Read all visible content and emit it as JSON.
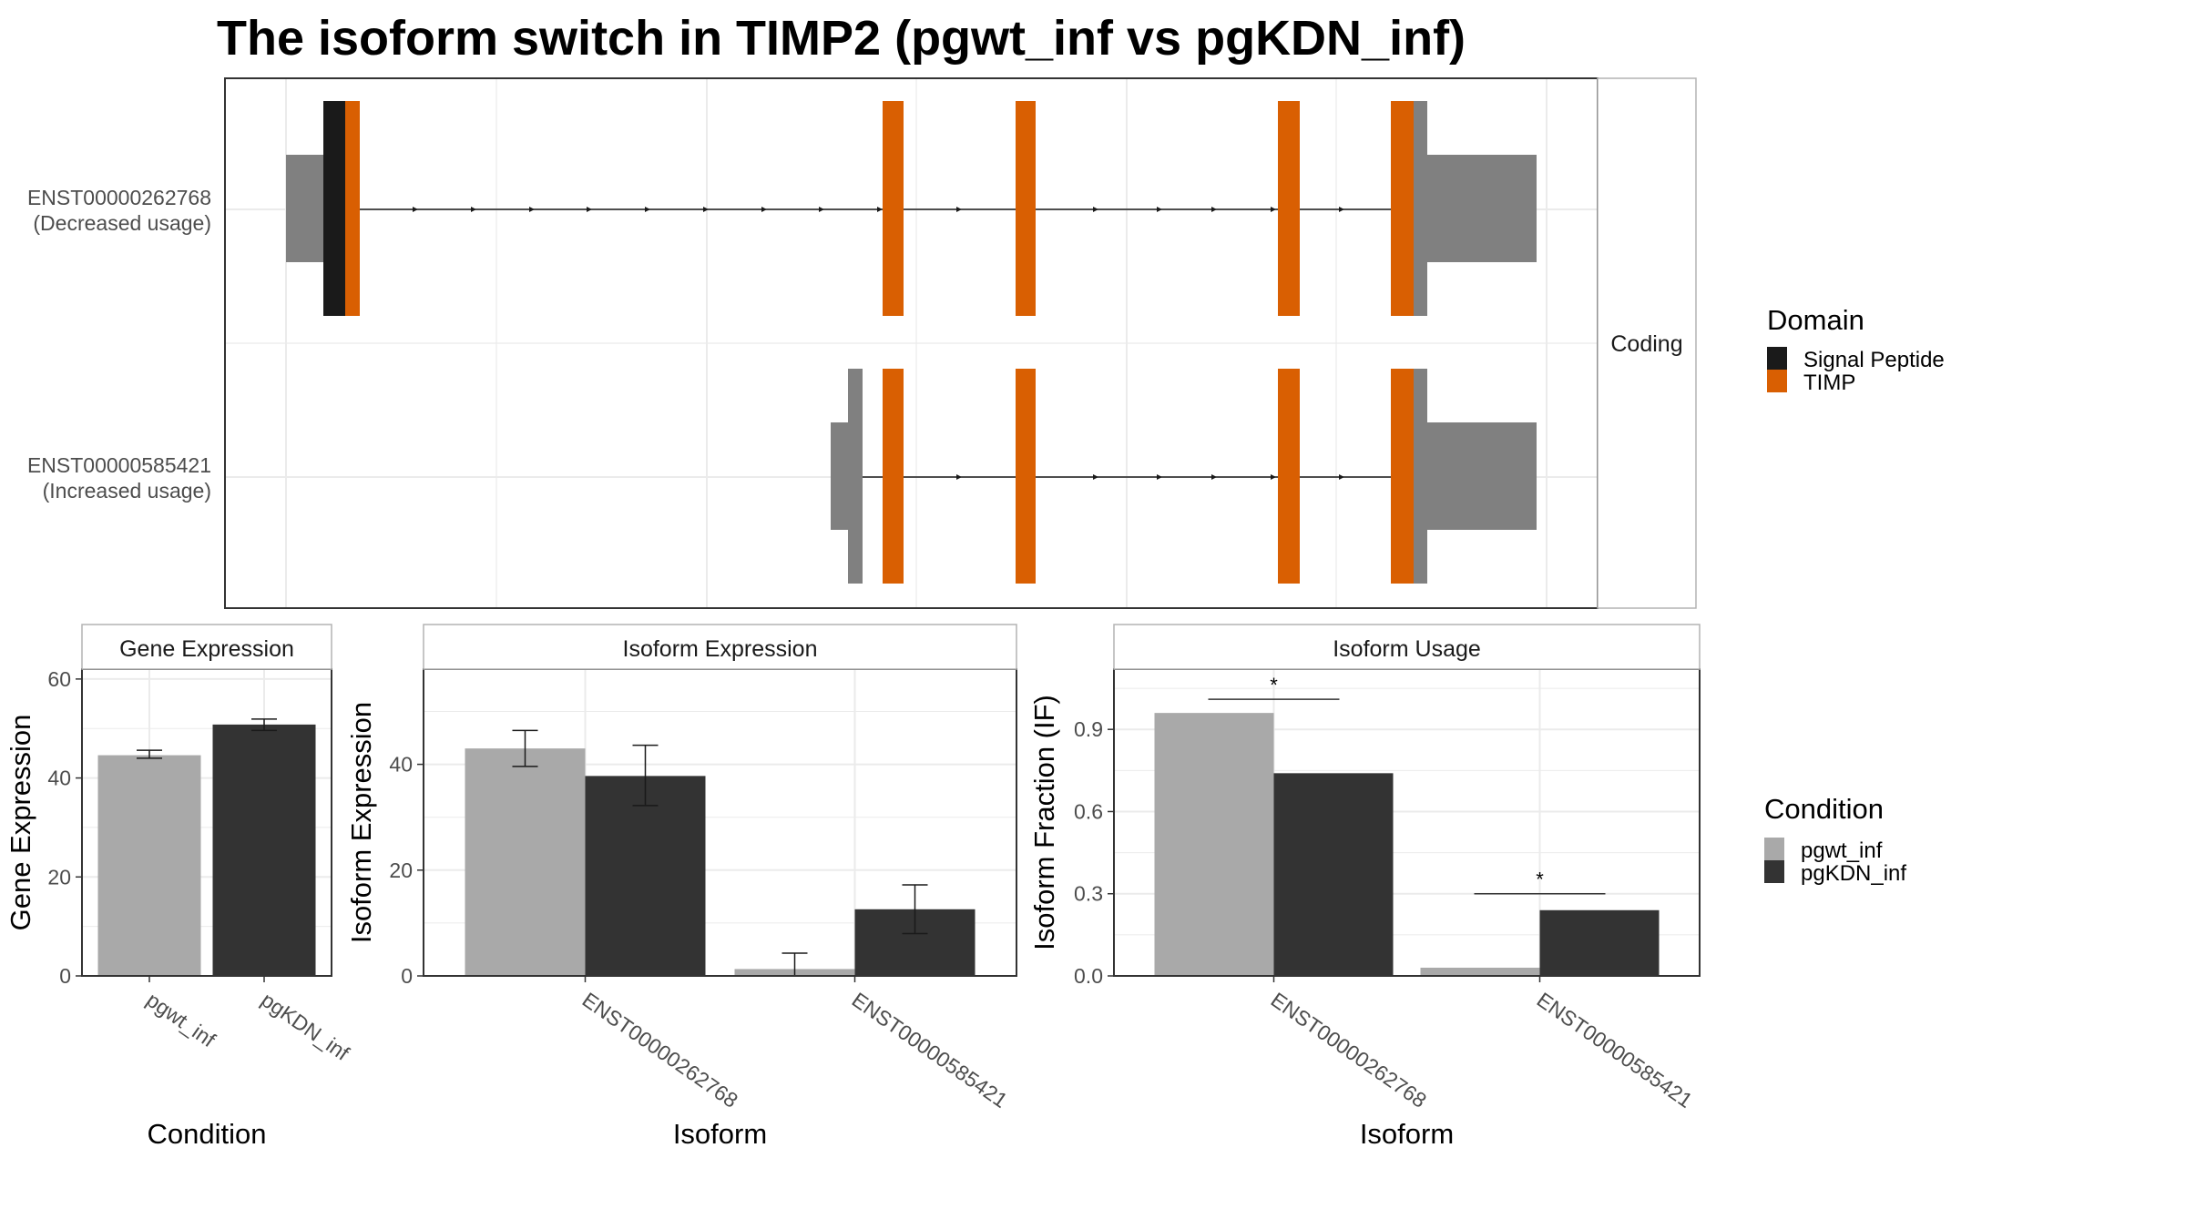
{
  "title": "The isoform switch in TIMP2 (pgwt_inf vs pgKDN_inf)",
  "colors": {
    "signal_peptide": "#1a1a1a",
    "timp": "#d95f02",
    "noncoding": "#808080",
    "pgwt_inf": "#a9a9a9",
    "pgKDN_inf": "#333333",
    "grid": "#ebebeb",
    "panel_border": "#333333",
    "strip_border": "#b3b3b3"
  },
  "structure": {
    "strip_label": "Coding",
    "isoforms": [
      {
        "id": "ENST00000262768",
        "usage": "(Decreased usage)"
      },
      {
        "id": "ENST00000585421",
        "usage": "(Increased usage)"
      }
    ]
  },
  "legends": {
    "domain": {
      "title": "Domain",
      "items": [
        {
          "label": "Signal Peptide",
          "color": "#1a1a1a"
        },
        {
          "label": "TIMP",
          "color": "#d95f02"
        }
      ]
    },
    "condition": {
      "title": "Condition",
      "items": [
        {
          "label": "pgwt_inf",
          "color": "#a9a9a9"
        },
        {
          "label": "pgKDN_inf",
          "color": "#333333"
        }
      ]
    }
  },
  "chart_data": [
    {
      "type": "bar",
      "title": "Gene Expression",
      "xlabel": "Condition",
      "ylabel": "Gene Expression",
      "ylim": [
        0,
        62
      ],
      "yticks": [
        0,
        20,
        40,
        60
      ],
      "categories": [
        "pgwt_inf",
        "pgKDN_inf"
      ],
      "values": [
        44.6,
        50.8
      ],
      "error_low": [
        44.0,
        49.6
      ],
      "error_high": [
        45.6,
        51.9
      ],
      "grid": true
    },
    {
      "type": "bar",
      "title": "Isoform Expression",
      "xlabel": "Isoform",
      "ylabel": "Isoform Expression",
      "ylim": [
        0,
        58
      ],
      "yticks": [
        0,
        20,
        40
      ],
      "categories": [
        "ENST00000262768",
        "ENST00000585421"
      ],
      "series": [
        {
          "name": "pgwt_inf",
          "values": [
            43.0,
            1.3
          ],
          "error_low": [
            39.6,
            0.0
          ],
          "error_high": [
            46.4,
            4.3
          ]
        },
        {
          "name": "pgKDN_inf",
          "values": [
            37.8,
            12.6
          ],
          "error_low": [
            32.2,
            8.0
          ],
          "error_high": [
            43.6,
            17.2
          ]
        }
      ],
      "grid": true
    },
    {
      "type": "bar",
      "title": "Isoform Usage",
      "xlabel": "Isoform",
      "ylabel": "Isoform Fraction (IF)",
      "ylim": [
        0,
        1.12
      ],
      "yticks": [
        0.0,
        0.3,
        0.6,
        0.9
      ],
      "categories": [
        "ENST00000262768",
        "ENST00000585421"
      ],
      "series": [
        {
          "name": "pgwt_inf",
          "values": [
            0.96,
            0.03
          ]
        },
        {
          "name": "pgKDN_inf",
          "values": [
            0.74,
            0.24
          ]
        }
      ],
      "significance": [
        {
          "category": "ENST00000262768",
          "label": "*",
          "y": 1.01
        },
        {
          "category": "ENST00000585421",
          "label": "*",
          "y": 0.3
        }
      ],
      "grid": true
    }
  ]
}
